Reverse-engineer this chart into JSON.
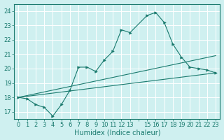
{
  "background_color": "#cff0f0",
  "grid_color": "#ffffff",
  "line_color": "#1a7a6e",
  "xlabel": "Humidex (Indice chaleur)",
  "xlabel_fontsize": 7,
  "tick_fontsize": 6,
  "ylim": [
    16.5,
    24.5
  ],
  "xlim": [
    -0.5,
    23.5
  ],
  "yticks": [
    17,
    18,
    19,
    20,
    21,
    22,
    23,
    24
  ],
  "xticks": [
    0,
    1,
    2,
    3,
    4,
    5,
    6,
    7,
    8,
    9,
    10,
    11,
    12,
    13,
    14,
    15,
    16,
    17,
    18,
    19,
    20,
    21,
    22,
    23
  ],
  "xtick_labels": [
    "0",
    "1",
    "2",
    "3",
    "4",
    "5",
    "6",
    "7",
    "8",
    "9",
    "10",
    "11",
    "12",
    "13",
    "",
    "15",
    "16",
    "17",
    "18",
    "19",
    "20",
    "21",
    "22",
    "23"
  ],
  "line1_x": [
    0,
    1,
    2,
    3,
    4,
    5,
    6,
    7,
    8,
    9,
    10,
    11,
    12,
    13,
    15,
    16,
    17,
    18,
    19,
    20,
    21,
    22,
    23
  ],
  "line1_y": [
    18.0,
    17.9,
    17.5,
    17.3,
    16.7,
    17.5,
    18.5,
    20.1,
    20.1,
    19.8,
    20.6,
    21.2,
    22.7,
    22.5,
    23.7,
    23.9,
    23.2,
    21.7,
    20.8,
    20.1,
    20.0,
    19.9,
    19.7
  ],
  "line2_x": [
    0,
    23
  ],
  "line2_y": [
    18.0,
    19.7
  ],
  "line3_x": [
    0,
    23
  ],
  "line3_y": [
    18.0,
    20.9
  ]
}
